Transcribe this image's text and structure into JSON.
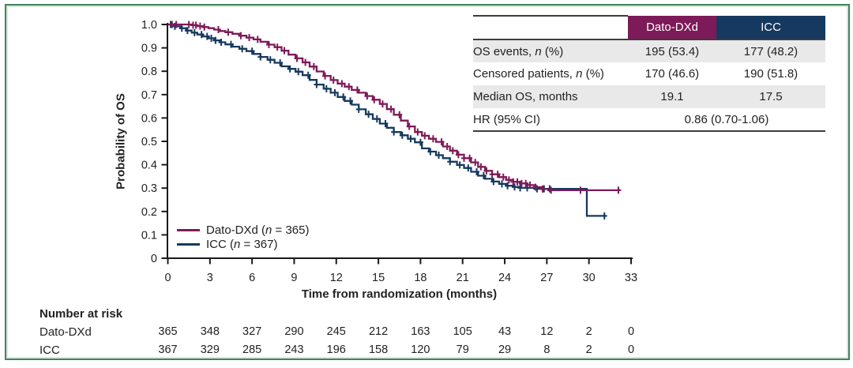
{
  "colors": {
    "dato_dxd": "#7d1a58",
    "icc": "#16395f",
    "row_shade": "#e9e9e9",
    "table_rule": "#3d3d3d",
    "figure_border": "#45805f",
    "axis": "#1a1a1a"
  },
  "chart_data": {
    "type": "line",
    "subtype": "kaplan-meier-step",
    "xlabel": "Time from randomization (months)",
    "ylabel": "Probability of OS",
    "xlim": [
      0,
      33
    ],
    "ylim": [
      0,
      1.0
    ],
    "grid": false,
    "legend_position": "inside-lower-left",
    "x_ticks": [
      "0",
      "3",
      "6",
      "9",
      "12",
      "15",
      "18",
      "21",
      "24",
      "27",
      "30",
      "33"
    ],
    "x_tick_values": [
      0,
      3,
      6,
      9,
      12,
      15,
      18,
      21,
      24,
      27,
      30,
      33
    ],
    "y_ticks": [
      "0",
      "0.1",
      "0.2",
      "0.3",
      "0.4",
      "0.5",
      "0.6",
      "0.7",
      "0.8",
      "0.9",
      "1.0"
    ],
    "y_tick_values": [
      0,
      0.1,
      0.2,
      0.3,
      0.4,
      0.5,
      0.6,
      0.7,
      0.8,
      0.9,
      1.0
    ],
    "series": [
      {
        "name": "Dato-DXd",
        "n": 365,
        "median_os_months": 19.1,
        "color_key": "dato_dxd",
        "points": [
          [
            0,
            1.0
          ],
          [
            1.4,
            1.0
          ],
          [
            1.7,
            0.997
          ],
          [
            2.1,
            0.993
          ],
          [
            2.5,
            0.989
          ],
          [
            2.9,
            0.984
          ],
          [
            3.3,
            0.978
          ],
          [
            3.7,
            0.972
          ],
          [
            4.1,
            0.967
          ],
          [
            4.6,
            0.96
          ],
          [
            5.1,
            0.952
          ],
          [
            5.6,
            0.944
          ],
          [
            6.1,
            0.936
          ],
          [
            6.6,
            0.926
          ],
          [
            7.1,
            0.914
          ],
          [
            7.6,
            0.903
          ],
          [
            8.1,
            0.888
          ],
          [
            8.6,
            0.871
          ],
          [
            9.1,
            0.855
          ],
          [
            9.6,
            0.838
          ],
          [
            10.1,
            0.82
          ],
          [
            10.6,
            0.799
          ],
          [
            11.1,
            0.78
          ],
          [
            11.6,
            0.762
          ],
          [
            12.1,
            0.747
          ],
          [
            12.6,
            0.734
          ],
          [
            13.1,
            0.72
          ],
          [
            13.6,
            0.708
          ],
          [
            14.1,
            0.694
          ],
          [
            14.6,
            0.678
          ],
          [
            15.1,
            0.66
          ],
          [
            15.6,
            0.638
          ],
          [
            16.1,
            0.614
          ],
          [
            16.6,
            0.589
          ],
          [
            17.1,
            0.564
          ],
          [
            17.6,
            0.54
          ],
          [
            18.1,
            0.524
          ],
          [
            18.6,
            0.511
          ],
          [
            19.1,
            0.498
          ],
          [
            19.6,
            0.478
          ],
          [
            20.1,
            0.46
          ],
          [
            20.6,
            0.443
          ],
          [
            21.1,
            0.428
          ],
          [
            21.6,
            0.41
          ],
          [
            22.1,
            0.391
          ],
          [
            22.6,
            0.374
          ],
          [
            23.1,
            0.359
          ],
          [
            23.6,
            0.347
          ],
          [
            24.1,
            0.335
          ],
          [
            24.6,
            0.327
          ],
          [
            25.1,
            0.32
          ],
          [
            25.6,
            0.313
          ],
          [
            26.1,
            0.304
          ],
          [
            26.6,
            0.296
          ],
          [
            27.1,
            0.291
          ],
          [
            32.2,
            0.291
          ]
        ],
        "censor_times": [
          0.3,
          0.6,
          1.5,
          1.8,
          2.0,
          2.3,
          2.6,
          3.6,
          4.3,
          5.2,
          5.8,
          6.4,
          7.2,
          7.8,
          8.3,
          9.2,
          9.8,
          10.4,
          11.2,
          11.8,
          12.4,
          12.9,
          13.5,
          14.2,
          14.7,
          15.3,
          15.9,
          16.5,
          17.2,
          17.8,
          18.3,
          18.9,
          19.5,
          19.9,
          20.3,
          20.7,
          21.1,
          21.5,
          21.9,
          22.3,
          22.7,
          23.1,
          23.5,
          23.9,
          24.3,
          24.6,
          24.9,
          25.2,
          25.5,
          25.8,
          26.2,
          26.7,
          27.3,
          29.4,
          32.1
        ]
      },
      {
        "name": "ICC",
        "n": 367,
        "median_os_months": 17.5,
        "color_key": "icc",
        "points": [
          [
            0,
            1.0
          ],
          [
            0.5,
            0.992
          ],
          [
            0.9,
            0.984
          ],
          [
            1.3,
            0.974
          ],
          [
            1.7,
            0.965
          ],
          [
            2.1,
            0.957
          ],
          [
            2.5,
            0.949
          ],
          [
            2.9,
            0.941
          ],
          [
            3.3,
            0.932
          ],
          [
            3.7,
            0.924
          ],
          [
            4.1,
            0.915
          ],
          [
            4.6,
            0.905
          ],
          [
            5.1,
            0.896
          ],
          [
            5.6,
            0.886
          ],
          [
            6.1,
            0.874
          ],
          [
            6.6,
            0.861
          ],
          [
            7.1,
            0.849
          ],
          [
            7.6,
            0.836
          ],
          [
            8.1,
            0.821
          ],
          [
            8.6,
            0.81
          ],
          [
            9.1,
            0.798
          ],
          [
            9.6,
            0.783
          ],
          [
            10.1,
            0.763
          ],
          [
            10.6,
            0.743
          ],
          [
            11.1,
            0.725
          ],
          [
            11.6,
            0.708
          ],
          [
            12.1,
            0.69
          ],
          [
            12.6,
            0.673
          ],
          [
            13.1,
            0.657
          ],
          [
            13.6,
            0.637
          ],
          [
            14.1,
            0.616
          ],
          [
            14.6,
            0.596
          ],
          [
            15.1,
            0.576
          ],
          [
            15.6,
            0.558
          ],
          [
            16.1,
            0.54
          ],
          [
            16.6,
            0.526
          ],
          [
            17.1,
            0.511
          ],
          [
            17.6,
            0.496
          ],
          [
            18.1,
            0.47
          ],
          [
            18.6,
            0.456
          ],
          [
            19.1,
            0.441
          ],
          [
            19.6,
            0.428
          ],
          [
            20.1,
            0.413
          ],
          [
            20.6,
            0.399
          ],
          [
            21.1,
            0.386
          ],
          [
            21.6,
            0.37
          ],
          [
            22.1,
            0.353
          ],
          [
            22.6,
            0.34
          ],
          [
            23.1,
            0.328
          ],
          [
            23.6,
            0.318
          ],
          [
            24.1,
            0.31
          ],
          [
            24.6,
            0.305
          ],
          [
            25.1,
            0.301
          ],
          [
            26.1,
            0.297
          ],
          [
            29.8,
            0.297
          ],
          [
            29.85,
            0.181
          ],
          [
            31.2,
            0.181
          ]
        ],
        "censor_times": [
          0.2,
          0.5,
          1.0,
          1.4,
          1.9,
          2.4,
          2.8,
          3.1,
          3.4,
          3.8,
          4.5,
          5.3,
          6.0,
          6.6,
          7.3,
          8.0,
          8.7,
          9.3,
          10.0,
          10.6,
          11.3,
          11.9,
          12.5,
          13.0,
          13.6,
          14.3,
          14.9,
          15.5,
          16.1,
          16.7,
          17.3,
          18.0,
          18.7,
          19.3,
          20.1,
          20.8,
          21.4,
          22.0,
          22.5,
          23.2,
          23.8,
          24.2,
          24.7,
          25.1,
          25.6,
          26.3,
          26.8,
          27.2,
          31.1
        ]
      }
    ]
  },
  "legend": {
    "entries": [
      {
        "prefix": "Dato-DXd (",
        "italic": "n",
        "suffix": " = 365)"
      },
      {
        "prefix": "ICC (",
        "italic": "n",
        "suffix": " = 367)"
      }
    ]
  },
  "stats_table": {
    "header": {
      "col1": "Dato-DXd",
      "col2": "ICC"
    },
    "rows": [
      {
        "prefix": "OS events, ",
        "italic": "n",
        "suffix": " (%)",
        "dato": "195 (53.4)",
        "icc": "177 (48.2)"
      },
      {
        "prefix": "Censored patients, ",
        "italic": "n",
        "suffix": " (%)",
        "dato": "170 (46.6)",
        "icc": "190 (51.8)"
      },
      {
        "prefix": "Median OS, months",
        "italic": "",
        "suffix": "",
        "dato": "19.1",
        "icc": "17.5"
      },
      {
        "prefix": "HR (95% CI)",
        "italic": "",
        "suffix": "",
        "combined": "0.86 (0.70-1.06)"
      }
    ]
  },
  "risk_table": {
    "title": "Number at risk",
    "times": [
      0,
      3,
      6,
      9,
      12,
      15,
      18,
      21,
      24,
      27,
      30,
      33
    ],
    "rows": [
      {
        "label": "Dato-DXd",
        "values": [
          365,
          348,
          327,
          290,
          245,
          212,
          163,
          105,
          43,
          12,
          2,
          0
        ]
      },
      {
        "label": "ICC",
        "values": [
          367,
          329,
          285,
          243,
          196,
          158,
          120,
          79,
          29,
          8,
          2,
          0
        ]
      }
    ]
  }
}
